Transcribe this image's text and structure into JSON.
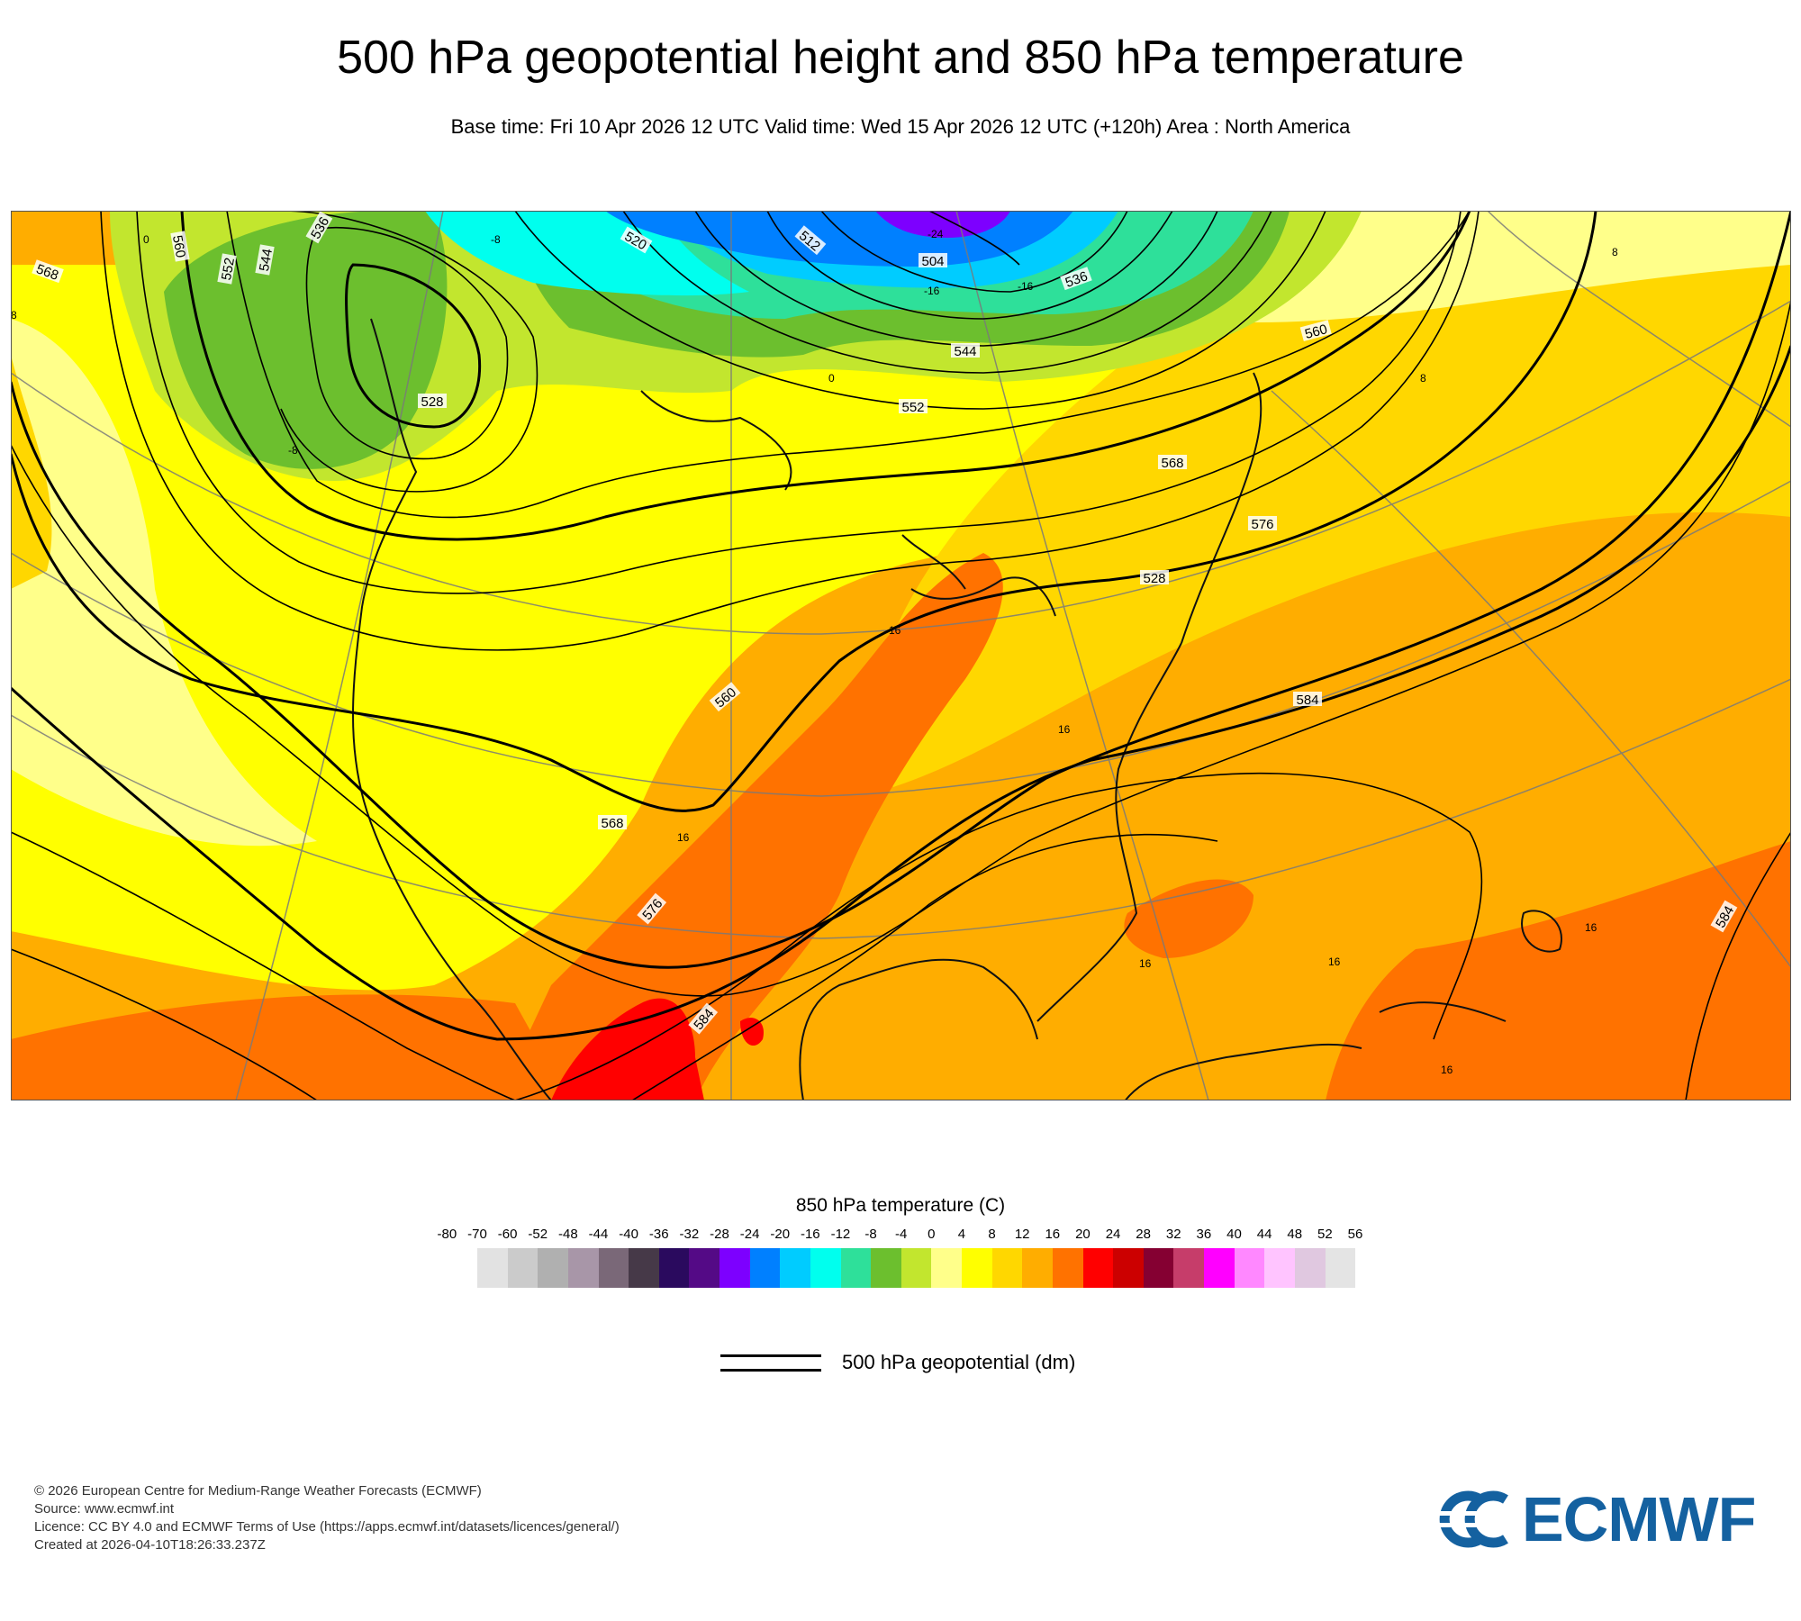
{
  "header": {
    "title": "500 hPa geopotential height and 850 hPa temperature",
    "subtitle": "Base time: Fri 10 Apr 2026 12 UTC Valid time: Wed 15 Apr 2026 12 UTC (+120h) Area : North America"
  },
  "map": {
    "contour_labels": [
      "568",
      "560",
      "552",
      "544",
      "536",
      "528",
      "520",
      "512",
      "504",
      "536",
      "544",
      "552",
      "560",
      "568",
      "576",
      "584",
      "560",
      "568",
      "576",
      "584",
      "528",
      "584"
    ],
    "temp_labels": [
      "16",
      "16",
      "16",
      "16",
      "16",
      "16",
      "16",
      "8",
      "8",
      "0",
      "-8",
      "-16",
      "-24",
      "-16",
      "-8",
      "0",
      "8"
    ]
  },
  "legend": {
    "title": "850 hPa temperature (C)",
    "ticks": [
      "-80",
      "-70",
      "-60",
      "-52",
      "-48",
      "-44",
      "-40",
      "-36",
      "-32",
      "-28",
      "-24",
      "-20",
      "-16",
      "-12",
      "-8",
      "-4",
      "0",
      "4",
      "8",
      "12",
      "16",
      "20",
      "24",
      "28",
      "32",
      "36",
      "40",
      "44",
      "48",
      "52",
      "56"
    ],
    "colors": [
      "#e2e2e2",
      "#cbcbcb",
      "#b0b0b0",
      "#a896a8",
      "#7a6878",
      "#463948",
      "#2a0a5e",
      "#540a86",
      "#7d00ff",
      "#0080ff",
      "#00ccff",
      "#00ffee",
      "#2ee09a",
      "#6cbf2e",
      "#c2e62e",
      "#ffff8a",
      "#ffff00",
      "#ffd700",
      "#ffad00",
      "#ff7200",
      "#ff0000",
      "#cc0000",
      "#850032",
      "#c63d6a",
      "#ff00ff",
      "#ff88ff",
      "#ffc4ff",
      "#e0c8e0",
      "#e4e4e4"
    ],
    "contour_label": "500 hPa geopotential (dm)"
  },
  "footer": {
    "copyright": "© 2026 European Centre for Medium-Range Weather Forecasts (ECMWF)",
    "source": "Source: www.ecmwf.int",
    "licence": "Licence: CC BY 4.0 and ECMWF Terms of Use (https://apps.ecmwf.int/datasets/licences/general/)",
    "created": "Created at 2026-04-10T18:26:33.237Z"
  },
  "logo": {
    "text": "ECMWF",
    "color": "#1461a0"
  }
}
